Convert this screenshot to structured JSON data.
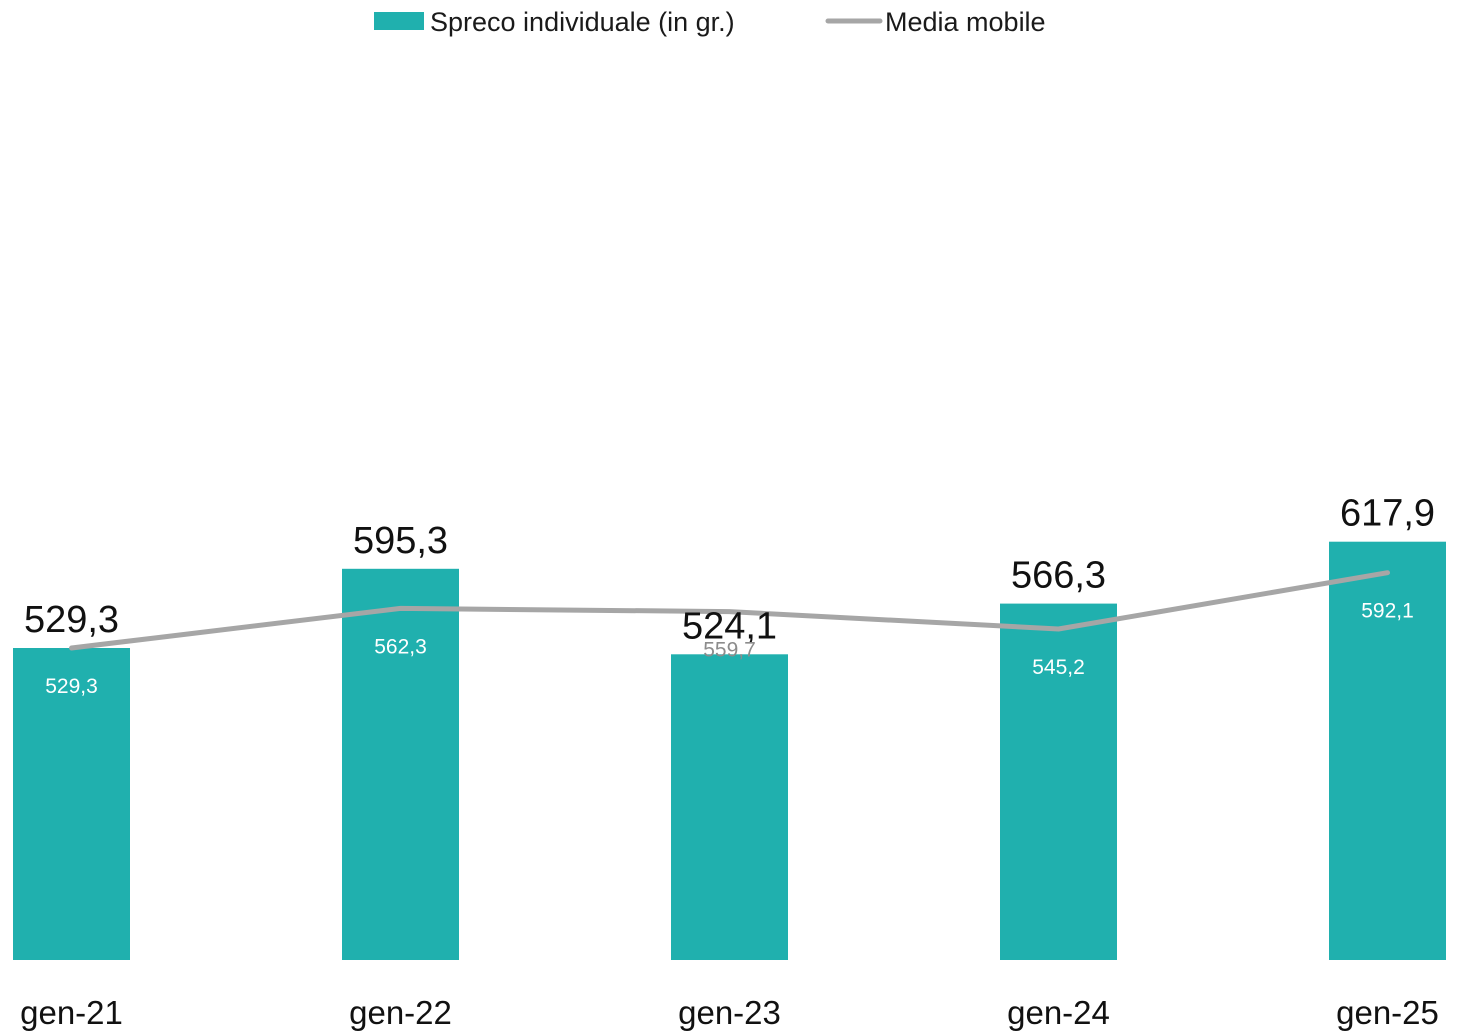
{
  "chart_data": {
    "type": "bar",
    "categories": [
      "gen-21",
      "gen-22",
      "gen-23",
      "gen-24",
      "gen-25"
    ],
    "series": [
      {
        "name": "Spreco individuale (in gr.)",
        "kind": "bar",
        "color": "#20B0AE",
        "values": [
          529.3,
          595.3,
          524.1,
          566.3,
          617.9
        ],
        "labels": [
          "529,3",
          "595,3",
          "524,1",
          "566,3",
          "617,9"
        ]
      },
      {
        "name": "Media mobile",
        "kind": "line",
        "color": "#A6A6A6",
        "values": [
          529.3,
          562.3,
          559.7,
          545.2,
          592.1
        ],
        "labels": [
          "529,3",
          "562,3",
          "559,7",
          "545,2",
          "592,1"
        ]
      }
    ],
    "legend": {
      "position": "top-center",
      "items": [
        "Spreco individuale (in gr.)",
        "Media mobile"
      ]
    },
    "grid": false,
    "y_axis_visible": false
  }
}
